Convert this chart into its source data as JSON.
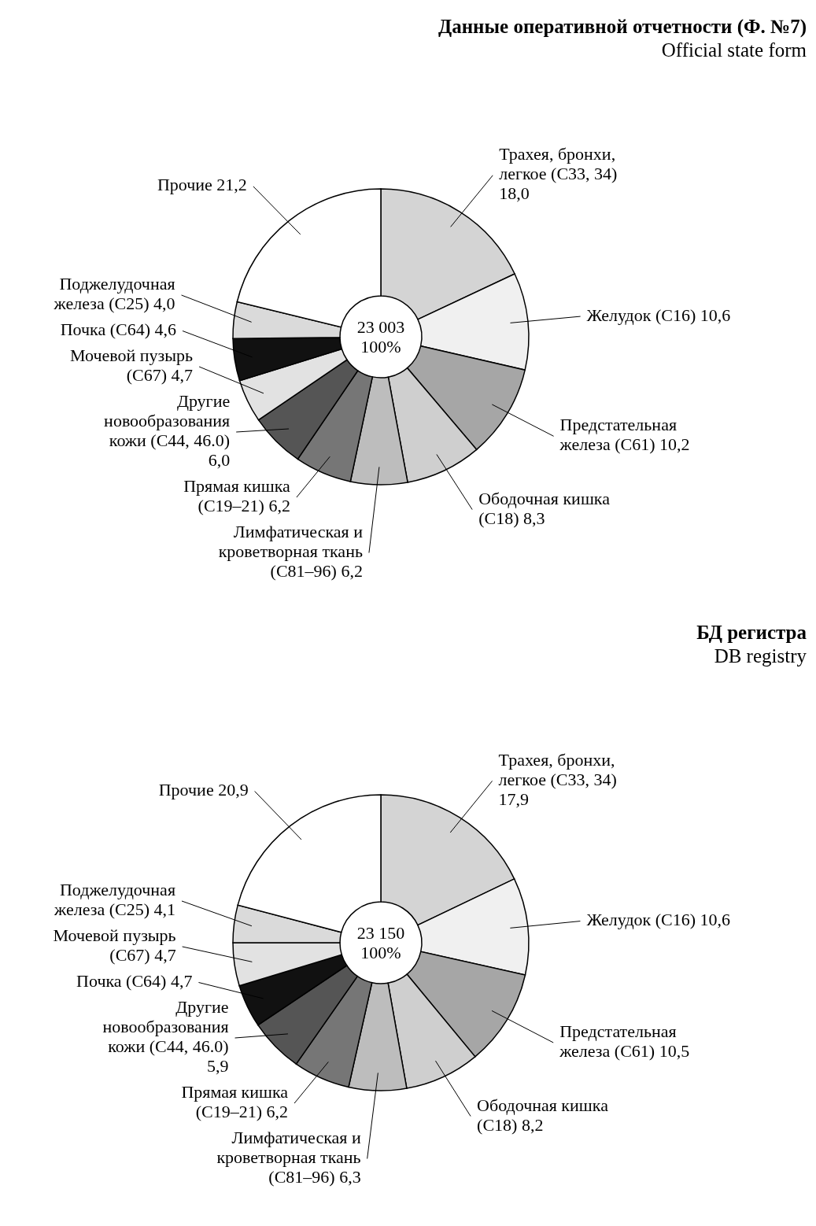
{
  "chart_data": [
    {
      "type": "donut",
      "title": "Данные оперативной отчетности (Ф. №7)",
      "subtitle": "Official state form",
      "annotations": [
        "23 003",
        "100%"
      ],
      "categories": [
        "Трахея, бронхи, легкое (С33, 34)",
        "Желудок (С16)",
        "Предстательная железа (С61)",
        "Ободочная кишка (С18)",
        "Лимфатическая и кроветворная ткань (С81–96)",
        "Прямая кишка (С19–21)",
        "Другие новообразования кожи (С44, 46.0)",
        "Мочевой пузырь (С67)",
        "Почка (С64)",
        "Поджелудочная железа (С25)",
        "Прочие"
      ],
      "values": [
        18.0,
        10.6,
        10.2,
        8.3,
        6.2,
        6.2,
        6.0,
        4.7,
        4.6,
        4.0,
        21.2
      ],
      "value_labels": [
        "18,0",
        "10,6",
        "10,2",
        "8,3",
        "6,2",
        "6,2",
        "6,0",
        "4,7",
        "4,6",
        "4,0",
        "21,2"
      ],
      "colors": [
        "#d4d4d4",
        "#f0f0f0",
        "#a6a6a6",
        "#cfcfcf",
        "#bdbdbd",
        "#767676",
        "#555555",
        "#e2e2e2",
        "#111111",
        "#dadada",
        "#ffffff"
      ]
    },
    {
      "type": "donut",
      "title": "БД регистра",
      "subtitle": "DB registry",
      "annotations": [
        "23 150",
        "100%"
      ],
      "categories": [
        "Трахея, бронхи, легкое (С33, 34)",
        "Желудок (С16)",
        "Предстательная железа (С61)",
        "Ободочная кишка (С18)",
        "Лимфатическая и кроветворная ткань (С81–96)",
        "Прямая кишка (С19–21)",
        "Другие новообразования кожи (С44, 46.0)",
        "Почка (С64)",
        "Мочевой пузырь (С67)",
        "Поджелудочная железа (С25)",
        "Прочие"
      ],
      "values": [
        17.9,
        10.6,
        10.5,
        8.2,
        6.3,
        6.2,
        5.9,
        4.7,
        4.7,
        4.1,
        20.9
      ],
      "value_labels": [
        "17,9",
        "10,6",
        "10,5",
        "8,2",
        "6,3",
        "6,2",
        "5,9",
        "4,7",
        "4,7",
        "4,1",
        "20,9"
      ],
      "colors": [
        "#d4d4d4",
        "#f0f0f0",
        "#a6a6a6",
        "#cfcfcf",
        "#bdbdbd",
        "#767676",
        "#555555",
        "#111111",
        "#e2e2e2",
        "#dadada",
        "#ffffff"
      ]
    }
  ]
}
